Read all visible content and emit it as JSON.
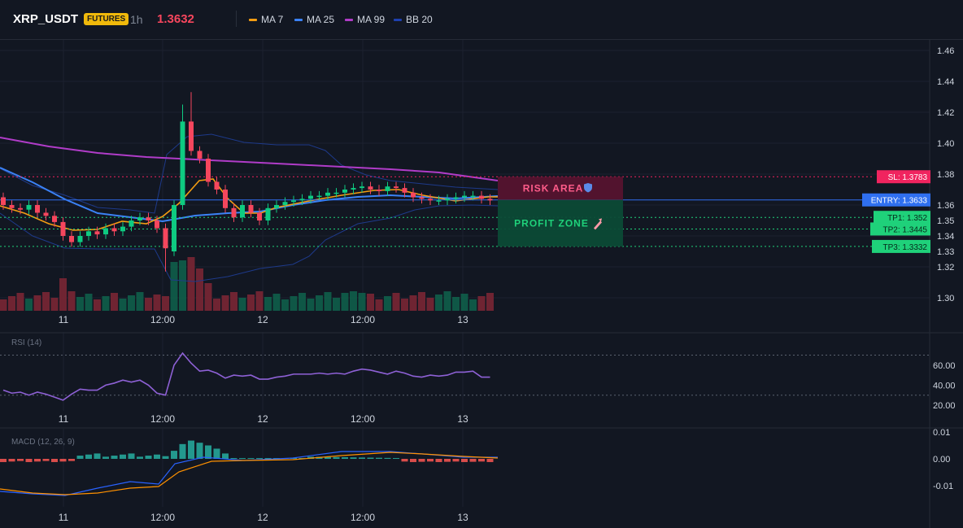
{
  "header": {
    "symbol": "XRP_USDT",
    "market_badge": "FUTURES",
    "timeframe": "1h",
    "last_price": "1.3632",
    "indicators": [
      {
        "label": "MA 7",
        "color": "#f39c12"
      },
      {
        "label": "MA 25",
        "color": "#3b82f6"
      },
      {
        "label": "MA 99",
        "color": "#b03cc8"
      },
      {
        "label": "BB 20",
        "color": "#1e40af"
      }
    ]
  },
  "price_axis": {
    "ticks": [
      "1.46",
      "1.44",
      "1.42",
      "1.40",
      "1.38",
      "1.36",
      "1.35",
      "1.34",
      "1.33",
      "1.32",
      "1.30"
    ]
  },
  "time_axis": {
    "ticks": [
      "11",
      "12:00",
      "12",
      "12:00",
      "13"
    ]
  },
  "levels": {
    "sl": {
      "label": "SL: 1.3783",
      "value": 1.3783,
      "color": "#f0245f"
    },
    "entry": {
      "label": "ENTRY: 1.3633",
      "value": 1.3633,
      "color": "#2f6ff0"
    },
    "tp1": {
      "label": "TP1: 1.352",
      "value": 1.352,
      "color": "#1fd17a"
    },
    "tp2": {
      "label": "TP2: 1.3445",
      "value": 1.3445,
      "color": "#1fd17a"
    },
    "tp3": {
      "label": "TP3: 1.3332",
      "value": 1.3332,
      "color": "#1fd17a"
    }
  },
  "zones": {
    "risk_label": "RISK AREA",
    "risk_icon": "shield-icon",
    "profit_label": "PROFIT ZONE",
    "profit_icon": "rocket-icon"
  },
  "rsi": {
    "title": "RSI (14)",
    "ticks": [
      "60.00",
      "40.00",
      "20.00"
    ],
    "values": [
      35,
      32,
      33,
      30,
      33,
      31,
      28,
      25,
      31,
      36,
      35,
      35,
      40,
      42,
      45,
      43,
      45,
      40,
      32,
      30,
      60,
      72,
      62,
      54,
      55,
      52,
      47,
      50,
      49,
      50,
      46,
      46,
      48,
      49,
      51,
      51,
      51,
      52,
      51,
      52,
      51,
      54,
      56,
      55,
      53,
      51,
      54,
      52,
      49,
      48,
      50,
      49,
      50,
      53,
      53,
      54,
      48,
      48
    ]
  },
  "macd": {
    "title": "MACD (12, 26, 9)",
    "ticks": [
      "0.01",
      "0.00",
      "-0.01"
    ]
  },
  "chart_data": {
    "type": "candlestick",
    "interval": "1h",
    "price_range": [
      1.295,
      1.465
    ],
    "ohlc_approx": {
      "open": [
        1.365,
        1.36,
        1.358,
        1.357,
        1.36,
        1.355,
        1.353,
        1.349,
        1.34,
        1.336,
        1.34,
        1.343,
        1.341,
        1.345,
        1.343,
        1.346,
        1.35,
        1.352,
        1.35,
        1.345,
        1.33,
        1.36,
        1.414,
        1.395,
        1.39,
        1.375,
        1.37,
        1.358,
        1.352,
        1.36,
        1.355,
        1.35,
        1.358,
        1.36,
        1.362,
        1.363,
        1.364,
        1.366,
        1.366,
        1.368,
        1.368,
        1.37,
        1.371,
        1.372,
        1.37,
        1.369,
        1.372,
        1.371,
        1.368,
        1.365,
        1.364,
        1.363,
        1.363,
        1.364,
        1.365,
        1.366,
        1.366,
        1.364
      ],
      "close": [
        1.36,
        1.358,
        1.357,
        1.36,
        1.355,
        1.353,
        1.349,
        1.34,
        1.336,
        1.34,
        1.343,
        1.341,
        1.345,
        1.343,
        1.346,
        1.35,
        1.352,
        1.35,
        1.345,
        1.332,
        1.36,
        1.414,
        1.395,
        1.39,
        1.375,
        1.37,
        1.358,
        1.352,
        1.36,
        1.355,
        1.35,
        1.358,
        1.36,
        1.362,
        1.363,
        1.364,
        1.366,
        1.366,
        1.368,
        1.368,
        1.37,
        1.371,
        1.372,
        1.37,
        1.369,
        1.372,
        1.371,
        1.368,
        1.365,
        1.364,
        1.363,
        1.363,
        1.364,
        1.365,
        1.366,
        1.366,
        1.364,
        1.363
      ]
    }
  }
}
